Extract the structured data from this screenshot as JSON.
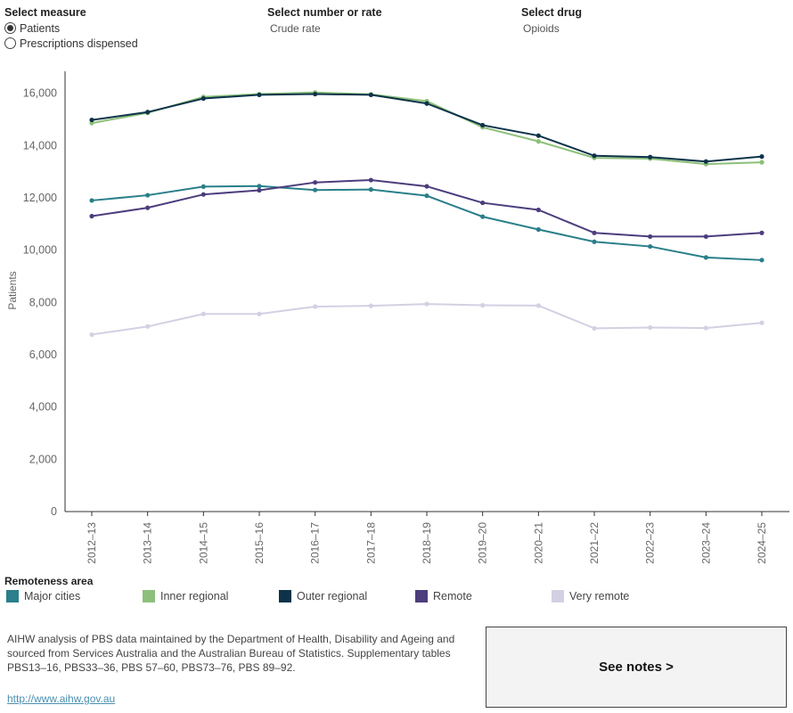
{
  "controls": {
    "measure": {
      "title": "Select measure",
      "options": [
        "Patients",
        "Prescriptions dispensed"
      ],
      "selected": "Patients"
    },
    "number_rate": {
      "title": "Select number or rate",
      "value": "Crude rate"
    },
    "drug": {
      "title": "Select drug",
      "value": "Opioids"
    }
  },
  "chart_data": {
    "type": "line",
    "xlabel": "",
    "ylabel": "Patients",
    "ylim": [
      0,
      16500
    ],
    "yticks": [
      0,
      2000,
      4000,
      6000,
      8000,
      10000,
      12000,
      14000,
      16000
    ],
    "ytick_labels": [
      "0",
      "2,000",
      "4,000",
      "6,000",
      "8,000",
      "10,000",
      "12,000",
      "14,000",
      "16,000"
    ],
    "grid": false,
    "categories": [
      "2012–13",
      "2013–14",
      "2014–15",
      "2015–16",
      "2016–17",
      "2017–18",
      "2018–19",
      "2019–20",
      "2020–21",
      "2021–22",
      "2022–23",
      "2023–24",
      "2024–25"
    ],
    "series": [
      {
        "name": "Major cities",
        "color": "#2a7f8a",
        "values": [
          11900,
          12100,
          12430,
          12450,
          12300,
          12320,
          12080,
          11280,
          10790,
          10320,
          10140,
          9720,
          9620
        ]
      },
      {
        "name": "Inner regional",
        "color": "#8dc07a",
        "values": [
          14860,
          15250,
          15860,
          15970,
          16030,
          15960,
          15700,
          14700,
          14160,
          13530,
          13500,
          13290,
          13360
        ]
      },
      {
        "name": "Outer regional",
        "color": "#0d3349",
        "values": [
          14980,
          15280,
          15800,
          15940,
          15970,
          15940,
          15610,
          14780,
          14380,
          13610,
          13560,
          13390,
          13580
        ]
      },
      {
        "name": "Remote",
        "color": "#4c3d7d",
        "values": [
          11300,
          11620,
          12130,
          12290,
          12590,
          12680,
          12440,
          11810,
          11540,
          10660,
          10520,
          10520,
          10660
        ]
      },
      {
        "name": "Very remote",
        "color": "#d3d0e3",
        "values": [
          6770,
          7080,
          7560,
          7560,
          7840,
          7870,
          7940,
          7890,
          7880,
          7010,
          7040,
          7020,
          7220
        ]
      }
    ]
  },
  "legend": {
    "title": "Remoteness area",
    "items": [
      {
        "label": "Major cities",
        "color": "#2a7f8a"
      },
      {
        "label": "Inner regional",
        "color": "#8dc07a"
      },
      {
        "label": "Outer regional",
        "color": "#0d3349"
      },
      {
        "label": "Remote",
        "color": "#4c3d7d"
      },
      {
        "label": "Very remote",
        "color": "#d3d0e3"
      }
    ]
  },
  "footer": {
    "source": "AIHW analysis of PBS data maintained by the Department of Health, Disability and Ageing and sourced from Services Australia and the Australian Bureau of Statistics. Supplementary tables PBS13–16, PBS33–36, PBS 57–60, PBS73–76, PBS 89–92.",
    "link": "http://www.aihw.gov.au",
    "notes_button": "See notes >"
  }
}
